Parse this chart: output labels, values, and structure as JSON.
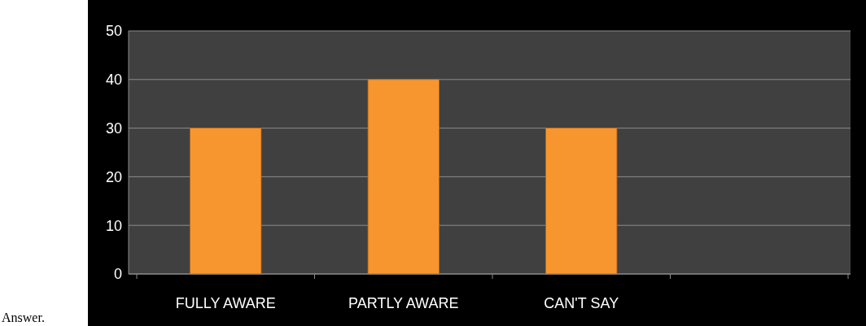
{
  "chart_data": {
    "type": "bar",
    "categories": [
      "FULLY AWARE",
      "PARTLY AWARE",
      "CAN'T SAY",
      null
    ],
    "values": [
      30,
      40,
      30,
      null
    ],
    "color": "#f7962e",
    "ylim": [
      0,
      50
    ],
    "yticks": [
      0,
      10,
      20,
      30,
      40,
      50
    ],
    "grid": "y",
    "annotations": [
      "Answer."
    ]
  }
}
